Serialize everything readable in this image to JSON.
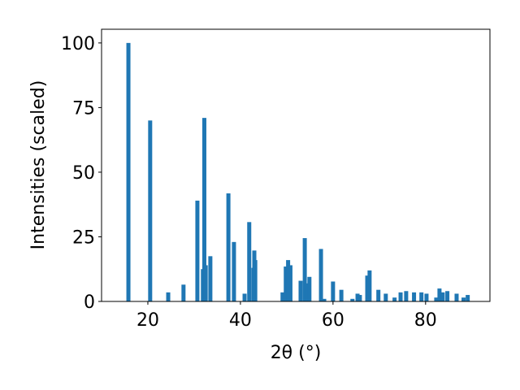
{
  "chart_data": {
    "type": "bar",
    "xlabel": "2θ (°)",
    "ylabel": "Intensities (scaled)",
    "color": "#1f77b4",
    "x": [
      15.8,
      20.5,
      24.4,
      27.7,
      30.7,
      31.9,
      32.2,
      32.5,
      33.5,
      37.4,
      38.6,
      40.9,
      41.9,
      42.8,
      43.0,
      43.2,
      49.1,
      49.8,
      50.3,
      50.8,
      53.0,
      53.9,
      54.4,
      54.9,
      57.4,
      58.1,
      60.0,
      61.8,
      64.2,
      65.3,
      65.8,
      67.4,
      67.9,
      69.8,
      71.4,
      73.3,
      74.6,
      75.8,
      77.5,
      79.1,
      80.2,
      82.3,
      83.0,
      83.7,
      84.7,
      86.7,
      88.2,
      89.1
    ],
    "values": [
      100,
      70,
      3.5,
      6.5,
      39,
      12.5,
      71,
      14,
      17.5,
      41.8,
      23,
      3,
      30.7,
      13,
      19.7,
      16,
      3.5,
      13.5,
      16,
      14,
      8,
      24.5,
      7,
      9.5,
      20.3,
      1,
      7.7,
      4.5,
      1,
      3,
      2.5,
      10,
      12,
      4.5,
      3,
      1.5,
      3.5,
      4,
      3.5,
      3.5,
      3,
      1.5,
      5,
      3.5,
      4,
      3,
      1.5,
      2.5
    ],
    "xlim": [
      10,
      93.9
    ],
    "ylim": [
      0,
      105.3
    ],
    "xticks": [
      20,
      40,
      60,
      80
    ],
    "yticks": [
      0,
      25,
      50,
      75,
      100
    ]
  }
}
